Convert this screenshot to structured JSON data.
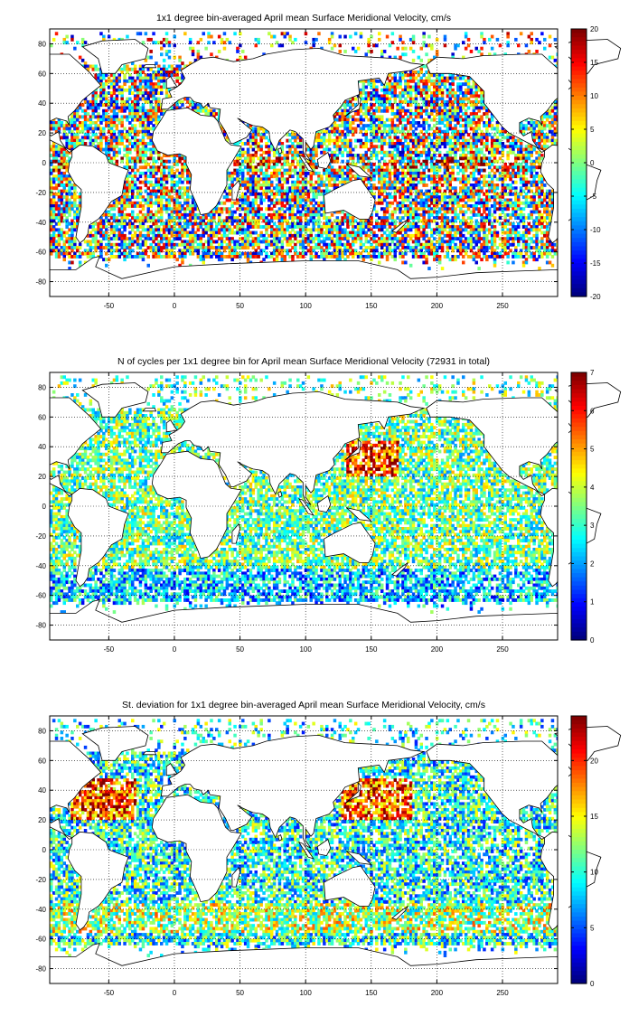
{
  "chart_data": [
    {
      "type": "heatmap",
      "title": "1x1 degree bin-averaged April mean Surface Meridional Velocity, cm/s",
      "xlim": [
        -95,
        292
      ],
      "ylim": [
        -90,
        90
      ],
      "xticks": [
        -50,
        0,
        50,
        100,
        150,
        200,
        250
      ],
      "yticks": [
        80,
        60,
        40,
        20,
        0,
        -20,
        -40,
        -60,
        -80
      ],
      "grid": true,
      "colormap": "jet",
      "clim": [
        -20,
        20
      ],
      "colorbar_ticks": [
        20,
        15,
        10,
        5,
        0,
        -5,
        -10,
        -15,
        -20
      ],
      "field": "velocity"
    },
    {
      "type": "heatmap",
      "title": "N of cycles per 1x1 degree bin for April mean Surface Meridional Velocity (72931 in total)",
      "xlim": [
        -95,
        292
      ],
      "ylim": [
        -90,
        90
      ],
      "xticks": [
        -50,
        0,
        50,
        100,
        150,
        200,
        250
      ],
      "yticks": [
        80,
        60,
        40,
        20,
        0,
        -20,
        -40,
        -60,
        -80
      ],
      "grid": true,
      "colormap": "jet",
      "clim": [
        0,
        7
      ],
      "colorbar_ticks": [
        7,
        6,
        5,
        4,
        3,
        2,
        1,
        0
      ],
      "field": "count"
    },
    {
      "type": "heatmap",
      "title": "St. deviation for 1x1 degree bin-averaged April mean Surface Meridional Velocity, cm/s",
      "xlim": [
        -95,
        292
      ],
      "ylim": [
        -90,
        90
      ],
      "xticks": [
        -50,
        0,
        50,
        100,
        150,
        200,
        250
      ],
      "yticks": [
        80,
        60,
        40,
        20,
        0,
        -20,
        -40,
        -60,
        -80
      ],
      "grid": true,
      "colormap": "jet",
      "clim": [
        0,
        24
      ],
      "colorbar_ticks": [
        20,
        15,
        10,
        5,
        0
      ],
      "field": "std"
    }
  ]
}
